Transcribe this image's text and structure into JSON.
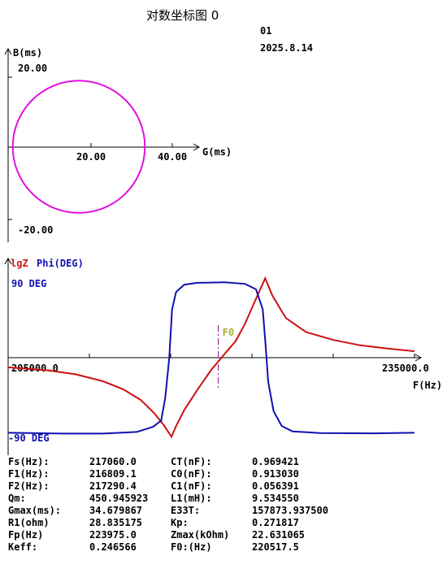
{
  "window": {
    "title": "对数坐标图  0",
    "id": "01",
    "date": "2025.8.14"
  },
  "chart_data": [
    {
      "type": "scatter",
      "title": "",
      "xlabel": "G(ms)",
      "ylabel": "B(ms)",
      "xlim": [
        0,
        47
      ],
      "ylim": [
        -24,
        24
      ],
      "x_ticks": [
        "20.00",
        "40.00"
      ],
      "y_ticks": [
        "20.00",
        "-20.00"
      ],
      "circle": {
        "center": [
          17.4,
          0.1
        ],
        "radius": 17.35
      },
      "color": "#e010e0"
    },
    {
      "type": "line",
      "title": "",
      "xlim": [
        205000,
        235000
      ],
      "x_ticks": [
        "205000.0",
        "235000.0"
      ],
      "xlabel": "F(Hz)",
      "legend": [
        "lgZ",
        "Phi(DEG)"
      ],
      "y_labels": [
        "90 DEG",
        "-90 DEG"
      ],
      "marker": {
        "label": "F0",
        "x": 220517.5
      },
      "series": [
        {
          "name": "lgZ",
          "color": "#cc1111",
          "points": [
            [
              205000,
              -0.36
            ],
            [
              208000,
              -0.48
            ],
            [
              210000,
              -0.62
            ],
            [
              212000,
              -0.88
            ],
            [
              213500,
              -1.18
            ],
            [
              214800,
              -1.58
            ],
            [
              215800,
              -2.08
            ],
            [
              216500,
              -2.52
            ],
            [
              217060,
              -2.95
            ],
            [
              217400,
              -2.55
            ],
            [
              218000,
              -1.95
            ],
            [
              219000,
              -1.18
            ],
            [
              220000,
              -0.45
            ],
            [
              221000,
              0.15
            ],
            [
              221800,
              0.62
            ],
            [
              222500,
              1.28
            ],
            [
              223200,
              2.08
            ],
            [
              223975,
              2.96
            ],
            [
              224500,
              2.32
            ],
            [
              225500,
              1.48
            ],
            [
              227000,
              0.95
            ],
            [
              229000,
              0.66
            ],
            [
              231000,
              0.46
            ],
            [
              233000,
              0.34
            ],
            [
              235000,
              0.24
            ]
          ]
        },
        {
          "name": "Phi(DEG)",
          "color": "#1010b0",
          "points": [
            [
              205000,
              -2.8
            ],
            [
              209000,
              -2.83
            ],
            [
              212000,
              -2.83
            ],
            [
              214500,
              -2.77
            ],
            [
              215700,
              -2.58
            ],
            [
              216300,
              -2.35
            ],
            [
              216600,
              -1.5
            ],
            [
              216900,
              0
            ],
            [
              217100,
              1.8
            ],
            [
              217400,
              2.45
            ],
            [
              218000,
              2.72
            ],
            [
              219000,
              2.79
            ],
            [
              221000,
              2.81
            ],
            [
              222500,
              2.75
            ],
            [
              223300,
              2.55
            ],
            [
              223800,
              1.8
            ],
            [
              224000,
              0.5
            ],
            [
              224200,
              -0.9
            ],
            [
              224600,
              -2.0
            ],
            [
              225200,
              -2.55
            ],
            [
              226000,
              -2.75
            ],
            [
              228000,
              -2.81
            ],
            [
              232000,
              -2.82
            ],
            [
              235000,
              -2.8
            ]
          ]
        }
      ]
    }
  ],
  "params": [
    {
      "l1": "Fs(Hz):",
      "v1": "217060.0",
      "l2": "CT(nF):",
      "v2": "0.969421"
    },
    {
      "l1": "F1(Hz):",
      "v1": "216809.1",
      "l2": "C0(nF):",
      "v2": "0.913030"
    },
    {
      "l1": "F2(Hz):",
      "v1": "217290.4",
      "l2": "C1(nF):",
      "v2": "0.056391"
    },
    {
      "l1": "Qm:",
      "v1": "450.945923",
      "l2": "L1(mH):",
      "v2": "9.534550"
    },
    {
      "l1": "Gmax(ms):",
      "v1": "34.679867",
      "l2": "E33T:",
      "v2": "157873.937500"
    },
    {
      "l1": "R1(ohm)",
      "v1": "28.835175",
      "l2": "Kp:",
      "v2": "0.271817"
    },
    {
      "l1": "Fp(Hz)",
      "v1": "223975.0",
      "l2": "Zmax(kOhm)",
      "v2": "22.631065"
    },
    {
      "l1": "Keff:",
      "v1": "0.246566",
      "l2": "F0:(Hz)",
      "v2": "220517.5"
    }
  ]
}
